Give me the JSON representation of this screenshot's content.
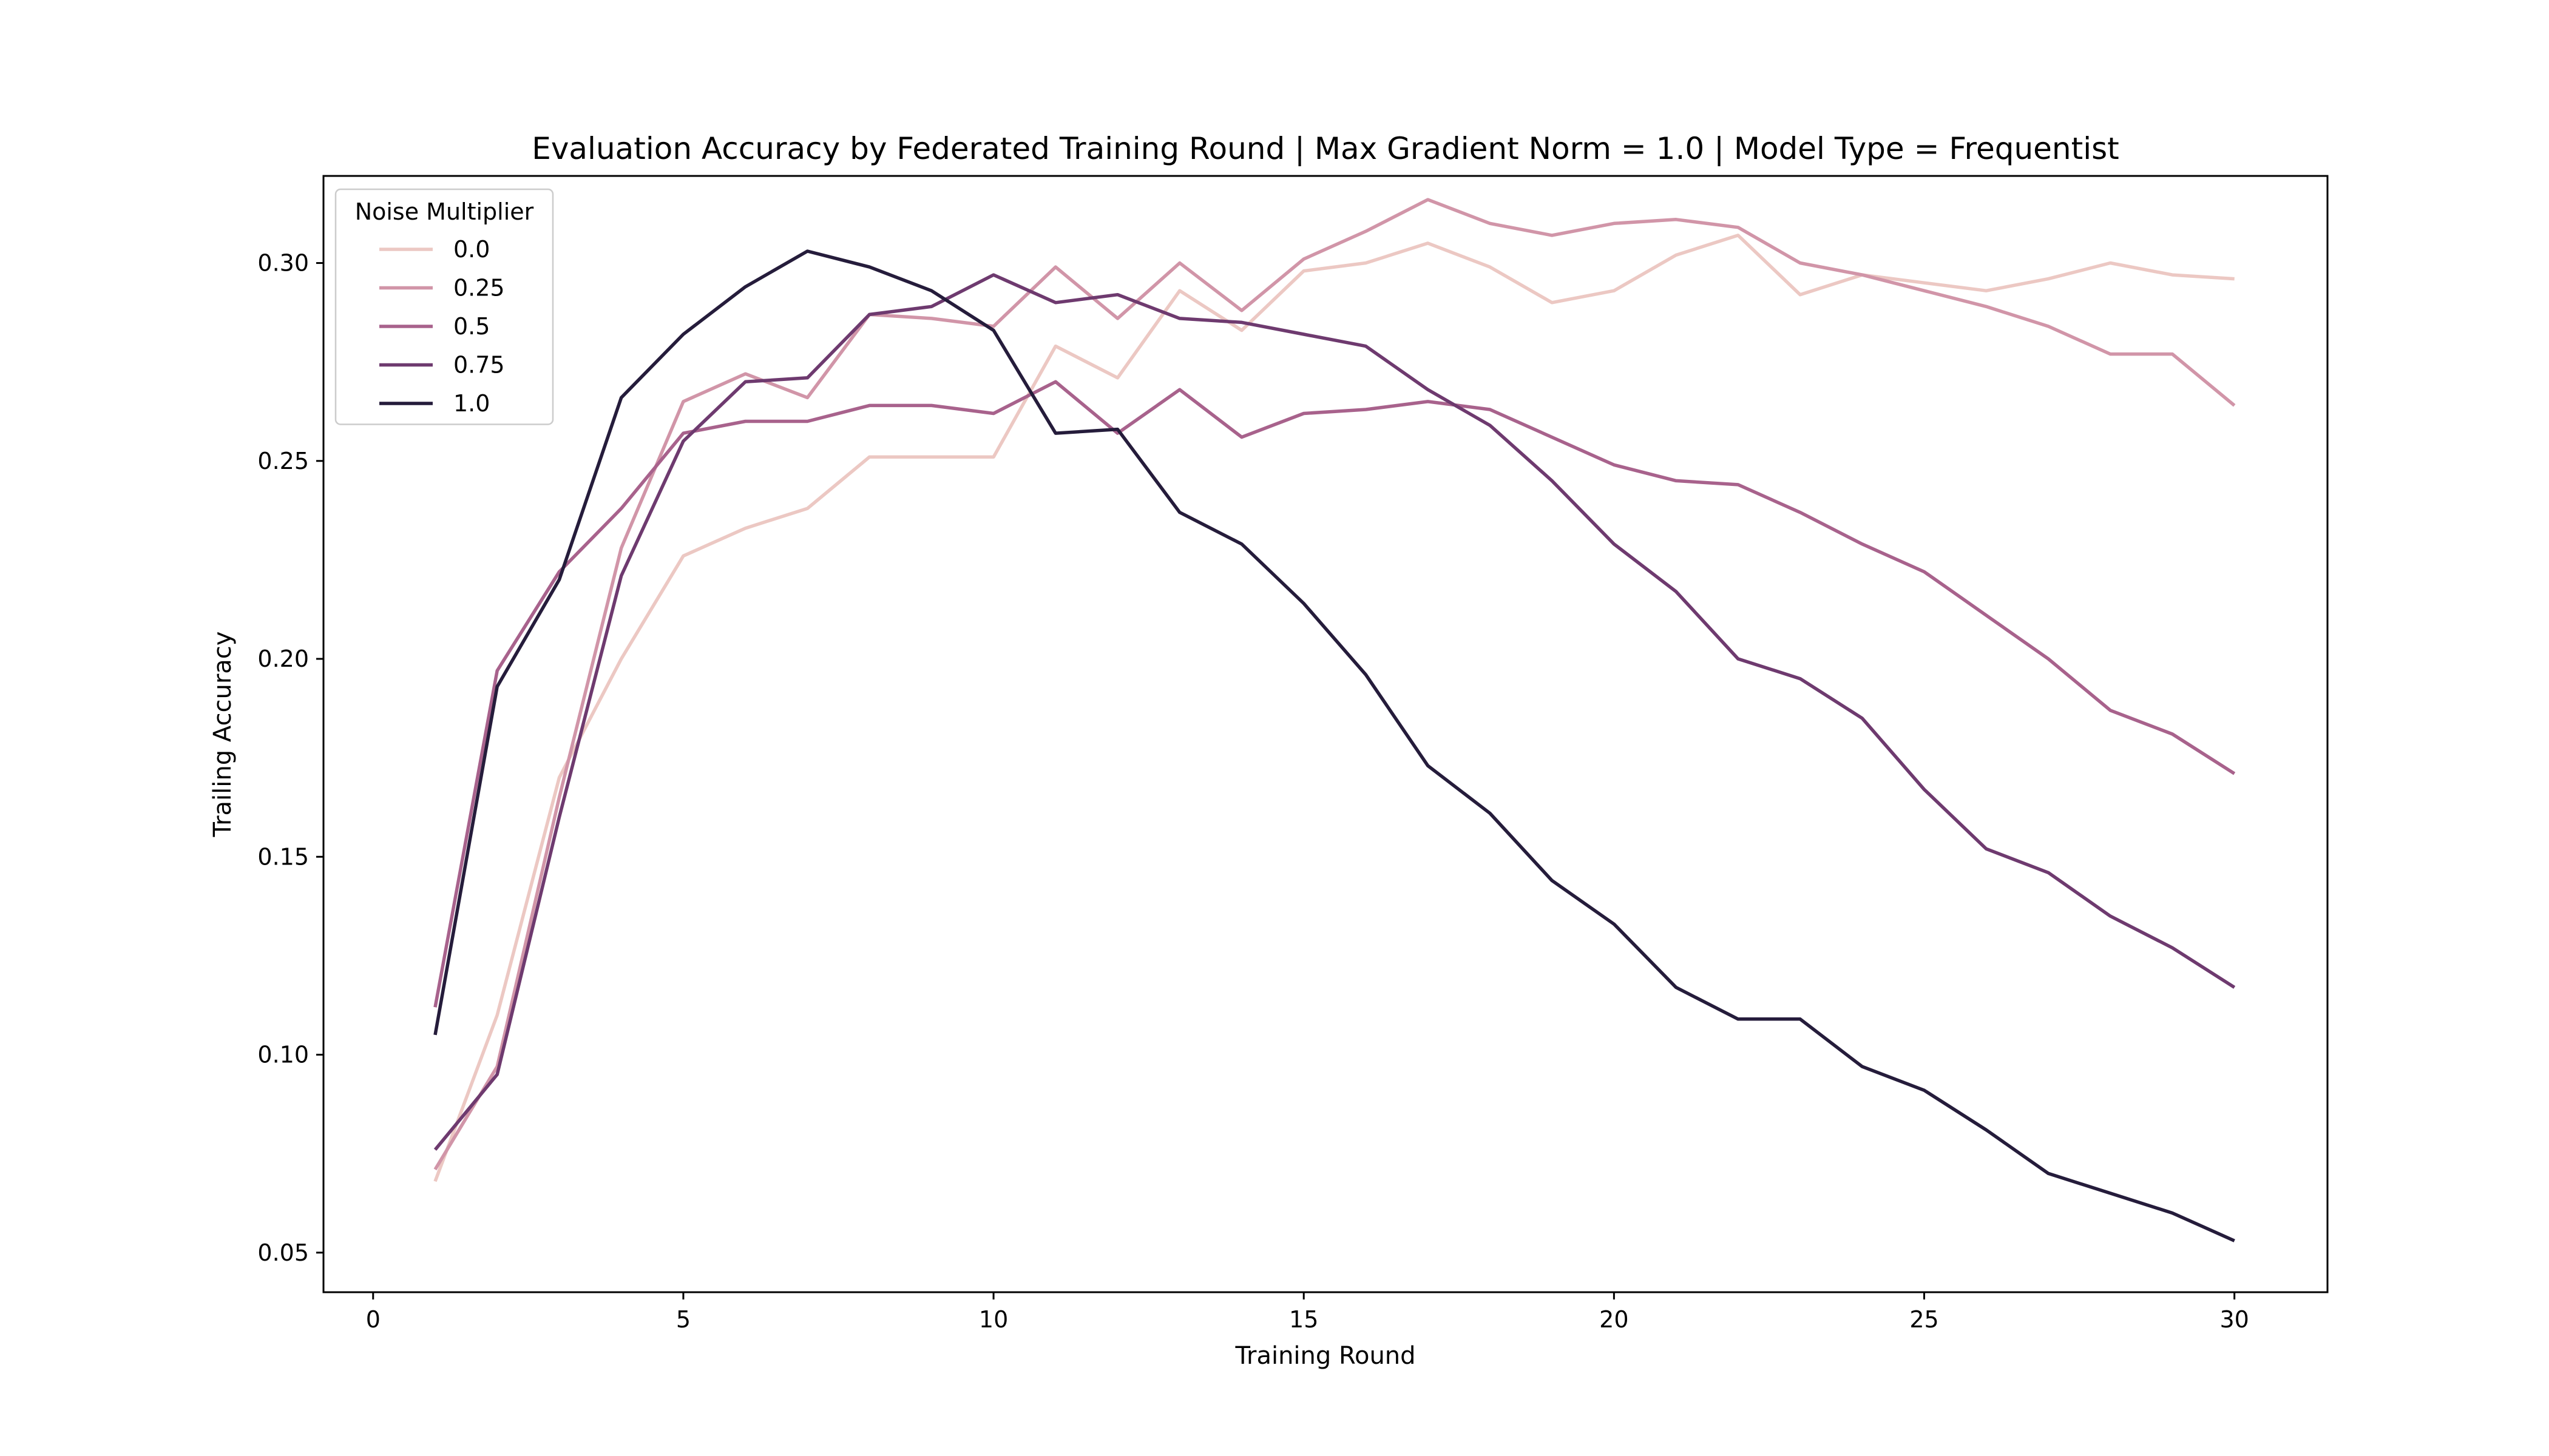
{
  "chart_data": {
    "type": "line",
    "title": "Evaluation Accuracy by Federated Training Round | Max Gradient Norm = 1.0 | Model Type = Frequentist",
    "xlabel": "Training Round",
    "ylabel": "Trailing Accuracy",
    "xlim": [
      -0.8,
      31.5
    ],
    "ylim": [
      0.04,
      0.322
    ],
    "xticks": [
      0,
      5,
      10,
      15,
      20,
      25,
      30
    ],
    "xtick_labels": [
      "0",
      "5",
      "10",
      "15",
      "20",
      "25",
      "30"
    ],
    "yticks": [
      0.05,
      0.1,
      0.15,
      0.2,
      0.25,
      0.3
    ],
    "ytick_labels": [
      "0.05",
      "0.10",
      "0.15",
      "0.20",
      "0.25",
      "0.30"
    ],
    "grid": false,
    "legend": {
      "title": "Noise Multiplier",
      "position": "upper-left"
    },
    "x": [
      1,
      2,
      3,
      4,
      5,
      6,
      7,
      8,
      9,
      10,
      11,
      12,
      13,
      14,
      15,
      16,
      17,
      18,
      19,
      20,
      21,
      22,
      23,
      24,
      25,
      26,
      27,
      28,
      29,
      30
    ],
    "series": [
      {
        "name": "0.0",
        "color": "#ecc8c3",
        "values": [
          0.068,
          0.11,
          0.17,
          0.2,
          0.226,
          0.233,
          0.238,
          0.251,
          0.251,
          0.251,
          0.279,
          0.271,
          0.293,
          0.283,
          0.298,
          0.3,
          0.305,
          0.299,
          0.29,
          0.293,
          0.302,
          0.307,
          0.292,
          0.297,
          0.295,
          0.293,
          0.296,
          0.3,
          0.297,
          0.296
        ]
      },
      {
        "name": "0.25",
        "color": "#d195a8",
        "values": [
          0.071,
          0.097,
          0.165,
          0.228,
          0.265,
          0.272,
          0.266,
          0.287,
          0.286,
          0.284,
          0.299,
          0.286,
          0.3,
          0.288,
          0.301,
          0.308,
          0.316,
          0.31,
          0.307,
          0.31,
          0.311,
          0.309,
          0.3,
          0.297,
          0.293,
          0.289,
          0.284,
          0.277,
          0.277,
          0.264
        ]
      },
      {
        "name": "0.5",
        "color": "#a8628c",
        "values": [
          0.112,
          0.197,
          0.222,
          0.238,
          0.257,
          0.26,
          0.26,
          0.264,
          0.264,
          0.262,
          0.27,
          0.257,
          0.268,
          0.256,
          0.262,
          0.263,
          0.265,
          0.263,
          0.256,
          0.249,
          0.245,
          0.244,
          0.237,
          0.229,
          0.222,
          0.211,
          0.2,
          0.187,
          0.181,
          0.171
        ]
      },
      {
        "name": "0.75",
        "color": "#6e3a6f",
        "values": [
          0.076,
          0.095,
          0.16,
          0.221,
          0.255,
          0.27,
          0.271,
          0.287,
          0.289,
          0.297,
          0.29,
          0.292,
          0.286,
          0.285,
          0.282,
          0.279,
          0.268,
          0.259,
          0.245,
          0.229,
          0.217,
          0.2,
          0.195,
          0.185,
          0.167,
          0.152,
          0.146,
          0.135,
          0.127,
          0.117
        ]
      },
      {
        "name": "1.0",
        "color": "#251c3b",
        "values": [
          0.105,
          0.193,
          0.22,
          0.266,
          0.282,
          0.294,
          0.303,
          0.299,
          0.293,
          0.283,
          0.257,
          0.258,
          0.237,
          0.229,
          0.214,
          0.196,
          0.173,
          0.161,
          0.144,
          0.133,
          0.117,
          0.109,
          0.109,
          0.097,
          0.091,
          0.081,
          0.07,
          0.065,
          0.06,
          0.053
        ]
      }
    ]
  }
}
